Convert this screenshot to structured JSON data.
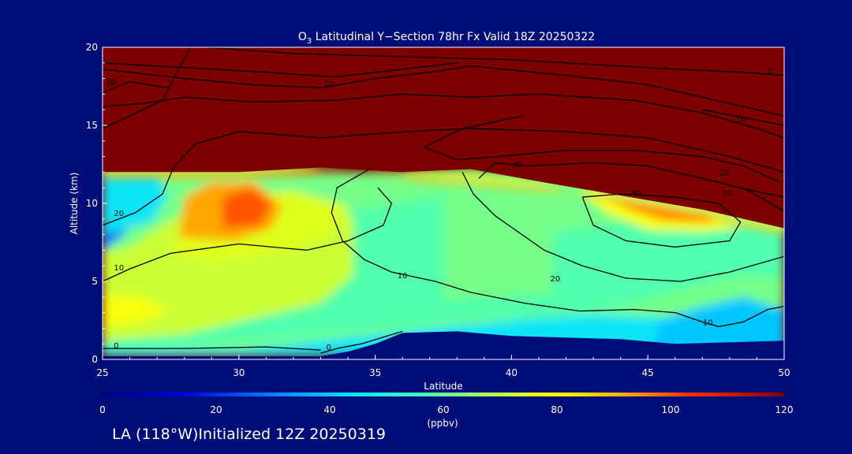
{
  "chart_data": {
    "type": "heatmap",
    "title_prefix": "O",
    "title_subscript": "3",
    "title_rest": " Latitudinal Y−Section 78hr  Fx Valid 18Z 20250322",
    "xlabel": "Latitude",
    "ylabel": "Altitude (km)",
    "xlim": [
      25,
      50
    ],
    "ylim": [
      0,
      20
    ],
    "x_ticks": [
      25,
      30,
      35,
      40,
      45,
      50
    ],
    "y_ticks": [
      0,
      5,
      10,
      15,
      20
    ],
    "colorbar": {
      "ticks": [
        0,
        20,
        40,
        60,
        80,
        100,
        120
      ],
      "label": "(ppbv)",
      "range": [
        0,
        120
      ]
    },
    "tropopause_km": [
      [
        25,
        12.0
      ],
      [
        27,
        12.0
      ],
      [
        30,
        12.0
      ],
      [
        33,
        12.3
      ],
      [
        36,
        12.0
      ],
      [
        38.5,
        12.2
      ],
      [
        41,
        11.4
      ],
      [
        43,
        10.8
      ],
      [
        45,
        10.2
      ],
      [
        47,
        9.6
      ],
      [
        50,
        8.4
      ]
    ],
    "terrain_km": [
      [
        25,
        0.2
      ],
      [
        30,
        0.2
      ],
      [
        33,
        0.2
      ],
      [
        34,
        0.5
      ],
      [
        35,
        1.0
      ],
      [
        36,
        1.7
      ],
      [
        38,
        1.8
      ],
      [
        40,
        1.5
      ],
      [
        44,
        1.3
      ],
      [
        46,
        1.0
      ],
      [
        48,
        1.1
      ],
      [
        50,
        1.2
      ]
    ],
    "ozone_zones": [
      {
        "ppbv": 62,
        "points": [
          [
            25,
            0.2
          ],
          [
            50,
            0.2
          ],
          [
            50,
            12
          ],
          [
            25,
            12
          ]
        ]
      },
      {
        "ppbv": 45,
        "points": [
          [
            25,
            0.2
          ],
          [
            50,
            0.2
          ],
          [
            50,
            2.2
          ],
          [
            47,
            2.6
          ],
          [
            43,
            2.9
          ],
          [
            38,
            2.2
          ],
          [
            34,
            1.4
          ],
          [
            30,
            0.6
          ],
          [
            25,
            0.6
          ]
        ]
      },
      {
        "ppbv": 40,
        "points": [
          [
            45,
            0.2
          ],
          [
            50,
            0.2
          ],
          [
            50,
            3.2
          ],
          [
            48.5,
            4.0
          ],
          [
            47,
            3.4
          ],
          [
            45.5,
            2.6
          ]
        ]
      },
      {
        "ppbv": 58,
        "points": [
          [
            25,
            0.6
          ],
          [
            28,
            0.9
          ],
          [
            33,
            1.6
          ],
          [
            36,
            2.1
          ],
          [
            38.5,
            2.6
          ],
          [
            41,
            2.6
          ],
          [
            44,
            3.4
          ],
          [
            46.5,
            4.6
          ],
          [
            48,
            5.3
          ],
          [
            50,
            5.3
          ],
          [
            50,
            8.4
          ],
          [
            47,
            8.8
          ],
          [
            44,
            8.7
          ],
          [
            41.5,
            8.2
          ],
          [
            41.5,
            4.2
          ],
          [
            37.5,
            3.8
          ],
          [
            37.5,
            10.5
          ],
          [
            34,
            9.5
          ],
          [
            34,
            6.2
          ],
          [
            31.5,
            6.8
          ],
          [
            25,
            6.2
          ]
        ]
      },
      {
        "ppbv": 72,
        "points": [
          [
            25,
            1.2
          ],
          [
            28,
            1.6
          ],
          [
            31,
            2.8
          ],
          [
            33,
            3.6
          ],
          [
            34.2,
            5.4
          ],
          [
            34.2,
            9.2
          ],
          [
            32.5,
            10.4
          ],
          [
            30.5,
            10.8
          ],
          [
            29,
            10.4
          ],
          [
            27,
            8.4
          ],
          [
            26,
            7.2
          ],
          [
            25,
            6.8
          ]
        ]
      },
      {
        "ppbv": 78,
        "points": [
          [
            25,
            2.0
          ],
          [
            26.5,
            2.4
          ],
          [
            27.5,
            3.2
          ],
          [
            26.5,
            4.0
          ],
          [
            25,
            4.2
          ]
        ]
      },
      {
        "ppbv": 75,
        "points": [
          [
            27.5,
            6.8
          ],
          [
            29,
            6.2
          ],
          [
            32,
            7.0
          ],
          [
            33.5,
            8.2
          ],
          [
            34,
            9.8
          ],
          [
            32,
            10.8
          ],
          [
            29,
            10.4
          ],
          [
            28,
            9.4
          ]
        ]
      },
      {
        "ppbv": 92,
        "points": [
          [
            27.8,
            7.8
          ],
          [
            29.8,
            7.6
          ],
          [
            31.2,
            8.4
          ],
          [
            31.6,
            9.8
          ],
          [
            30.6,
            11.4
          ],
          [
            29,
            11.4
          ],
          [
            28,
            10.4
          ]
        ]
      },
      {
        "ppbv": 100,
        "points": [
          [
            29.4,
            8.4
          ],
          [
            30.8,
            8.6
          ],
          [
            31.2,
            10.0
          ],
          [
            30.4,
            11.0
          ],
          [
            29.4,
            10.4
          ]
        ]
      },
      {
        "ppbv": 28,
        "points": [
          [
            25,
            7.0
          ],
          [
            25.8,
            8.0
          ],
          [
            26.2,
            9.6
          ],
          [
            25.8,
            11.0
          ],
          [
            25,
            11.5
          ]
        ]
      },
      {
        "ppbv": 45,
        "points": [
          [
            25,
            8.0
          ],
          [
            26.8,
            8.8
          ],
          [
            27.4,
            10.5
          ],
          [
            27,
            12.0
          ],
          [
            25,
            12.0
          ]
        ]
      },
      {
        "ppbv": 78,
        "points": [
          [
            42.5,
            10.8
          ],
          [
            43.5,
            9.4
          ],
          [
            45,
            8.3
          ],
          [
            47,
            8.2
          ],
          [
            48.5,
            8.5
          ],
          [
            47,
            9.6
          ],
          [
            45,
            10.2
          ]
        ]
      },
      {
        "ppbv": 95,
        "points": [
          [
            43.4,
            10.6
          ],
          [
            44.4,
            9.6
          ],
          [
            45.6,
            8.9
          ],
          [
            47.2,
            8.8
          ],
          [
            47.6,
            9.4
          ],
          [
            45.4,
            10.1
          ]
        ]
      }
    ],
    "contours": [
      {
        "label": "0",
        "label_at": [
          25.5,
          0.7
        ],
        "points": [
          [
            25,
            0.7
          ],
          [
            28,
            0.7
          ],
          [
            31,
            0.8
          ],
          [
            33,
            0.6
          ]
        ]
      },
      {
        "label": "0",
        "label_at": [
          33.3,
          0.6
        ],
        "points": [
          [
            33,
            0.4
          ],
          [
            33.6,
            0.7
          ],
          [
            34.5,
            1.0
          ],
          [
            36,
            1.8
          ]
        ]
      },
      {
        "label": "10",
        "label_at": [
          25.6,
          5.7
        ],
        "points": [
          [
            25,
            5.0
          ],
          [
            26,
            5.8
          ],
          [
            27.5,
            6.8
          ],
          [
            30,
            7.4
          ],
          [
            32.5,
            7.0
          ],
          [
            34,
            7.6
          ],
          [
            35.3,
            8.6
          ],
          [
            35.6,
            10.0
          ],
          [
            35.1,
            11.0
          ]
        ]
      },
      {
        "label": "10",
        "label_at": [
          36,
          5.2
        ],
        "points": [
          [
            34.8,
            12.2
          ],
          [
            33.6,
            11.0
          ],
          [
            33.4,
            9.4
          ],
          [
            33.8,
            7.6
          ],
          [
            34.6,
            6.4
          ],
          [
            35.6,
            5.6
          ],
          [
            37.2,
            5.0
          ],
          [
            38.5,
            4.3
          ],
          [
            40.5,
            3.6
          ],
          [
            42.5,
            3.1
          ],
          [
            44.5,
            3.2
          ],
          [
            46,
            3.0
          ]
        ]
      },
      {
        "label": "10",
        "label_at": [
          47.2,
          2.2
        ],
        "points": [
          [
            46,
            3.0
          ],
          [
            47,
            2.4
          ],
          [
            47.6,
            2.1
          ],
          [
            48.5,
            2.4
          ],
          [
            49.4,
            3.2
          ],
          [
            50,
            3.4
          ]
        ]
      },
      {
        "label": "20",
        "label_at": [
          25.6,
          9.2
        ],
        "points": [
          [
            25,
            8.6
          ],
          [
            26.2,
            9.4
          ],
          [
            27.2,
            10.6
          ],
          [
            27.6,
            12.3
          ],
          [
            28.4,
            13.8
          ],
          [
            30,
            14.6
          ],
          [
            33,
            14.2
          ],
          [
            36.2,
            14.6
          ],
          [
            38.5,
            14.8
          ],
          [
            42,
            14.6
          ],
          [
            45,
            14.2
          ],
          [
            48,
            13.0
          ],
          [
            50,
            12.0
          ]
        ]
      },
      {
        "label": "20",
        "label_at": [
          41.6,
          5.0
        ],
        "points": [
          [
            38.2,
            12.0
          ],
          [
            38.6,
            10.6
          ],
          [
            39.4,
            9.2
          ],
          [
            41.2,
            7.0
          ],
          [
            42.6,
            6.0
          ],
          [
            44.2,
            5.2
          ],
          [
            46.2,
            5.0
          ],
          [
            48,
            5.6
          ],
          [
            50,
            6.6
          ]
        ]
      },
      {
        "label": "20",
        "label_at": [
          47.8,
          11.8
        ],
        "points": [
          [
            49.8,
            11.4
          ],
          [
            48.5,
            12.4
          ],
          [
            47,
            13.0
          ],
          [
            44.5,
            13.4
          ],
          [
            42,
            13.4
          ],
          [
            39.5,
            13.0
          ],
          [
            38,
            12.8
          ],
          [
            36.8,
            13.6
          ],
          [
            38.2,
            14.8
          ],
          [
            40.4,
            15.6
          ]
        ]
      },
      {
        "label": "30",
        "label_at": [
          25.3,
          17.6
        ],
        "points": [
          [
            25,
            17.1
          ],
          [
            26,
            17.8
          ],
          [
            27.4,
            17.4
          ]
        ]
      },
      {
        "label": "30",
        "label_at": [
          40.2,
          12.3
        ],
        "points": [
          [
            38.8,
            11.6
          ],
          [
            39.4,
            12.6
          ],
          [
            40.6,
            12.4
          ],
          [
            43,
            12.6
          ],
          [
            45,
            12.4
          ],
          [
            47,
            11.6
          ],
          [
            48.6,
            10.9
          ],
          [
            50,
            10.4
          ]
        ]
      },
      {
        "label": "30",
        "label_at": [
          47.9,
          10.5
        ],
        "points": [
          [
            48.6,
            10.9
          ],
          [
            49.4,
            10.1
          ],
          [
            50,
            9.5
          ]
        ]
      },
      {
        "label": "40",
        "label_at": [
          44.6,
          10.5
        ],
        "points": [
          [
            42.6,
            10.4
          ],
          [
            43,
            8.6
          ],
          [
            44.2,
            7.6
          ],
          [
            46,
            7.2
          ],
          [
            48,
            7.6
          ],
          [
            48.4,
            8.8
          ],
          [
            47.6,
            10.0
          ],
          [
            46,
            10.4
          ],
          [
            44,
            10.6
          ],
          [
            42.6,
            10.4
          ]
        ]
      },
      {
        "label": "10",
        "label_at": [
          33.3,
          17.5
        ],
        "points": [
          [
            25,
            18.6
          ],
          [
            28,
            18.0
          ],
          [
            30.5,
            17.6
          ],
          [
            33,
            17.4
          ],
          [
            35,
            18.0
          ],
          [
            37,
            18.4
          ],
          [
            38.5,
            18.8
          ],
          [
            42,
            18.2
          ],
          [
            45,
            17.6
          ],
          [
            48,
            16.4
          ],
          [
            50,
            15.6
          ]
        ]
      },
      {
        "label": "10",
        "label_at": [
          48.4,
          15.2
        ],
        "points": [
          [
            50,
            15.0
          ],
          [
            48.5,
            15.5
          ],
          [
            47,
            16.0
          ]
        ]
      },
      {
        "label": "0",
        "label_at": [
          49.5,
          18.3
        ],
        "points": [
          [
            28.8,
            20
          ],
          [
            32,
            19.6
          ],
          [
            36,
            19.4
          ],
          [
            40,
            19.2
          ],
          [
            43,
            18.9
          ],
          [
            46,
            18.6
          ],
          [
            48.5,
            18.4
          ],
          [
            50,
            18.2
          ]
        ]
      },
      {
        "label": "",
        "label_at": [
          25,
          16
        ],
        "points": [
          [
            25,
            14.8
          ],
          [
            26,
            15.6
          ],
          [
            27.2,
            16.6
          ],
          [
            27.8,
            18.6
          ],
          [
            28.2,
            20
          ]
        ]
      },
      {
        "label": "",
        "label_at": [
          25,
          16
        ],
        "points": [
          [
            25,
            16.2
          ],
          [
            26.5,
            16.4
          ],
          [
            28,
            16.8
          ],
          [
            30.5,
            16.5
          ],
          [
            33.5,
            16.6
          ],
          [
            36,
            17.0
          ],
          [
            38.5,
            16.8
          ],
          [
            41,
            17.0
          ],
          [
            44.5,
            16.6
          ],
          [
            47,
            15.8
          ],
          [
            49,
            14.8
          ],
          [
            50,
            14.2
          ]
        ]
      },
      {
        "label": "",
        "label_at": [
          25,
          16
        ],
        "points": [
          [
            25,
            19.0
          ],
          [
            27,
            18.8
          ],
          [
            29,
            18.6
          ],
          [
            31,
            18.4
          ],
          [
            33.5,
            18.1
          ],
          [
            36,
            18.6
          ],
          [
            38,
            19.0
          ]
        ]
      }
    ],
    "footer": "LA (118°W)Initialized 12Z 20250319"
  }
}
